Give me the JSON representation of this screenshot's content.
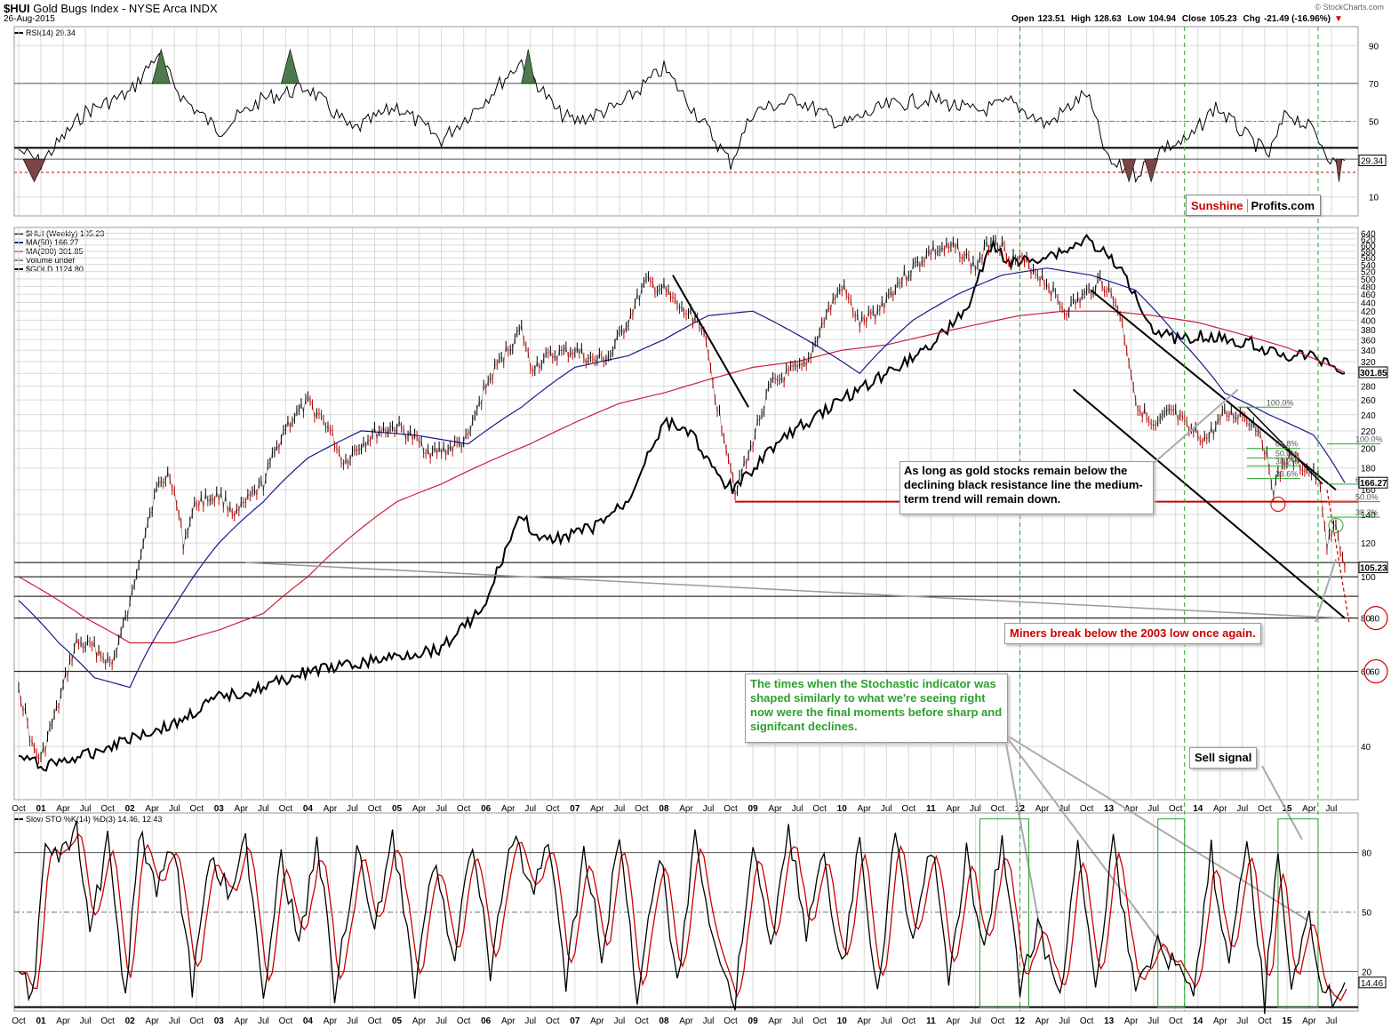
{
  "header": {
    "symbol": "$HUI",
    "title": "Gold Bugs Index - NYSE Arca INDX",
    "date": "26-Aug-2015",
    "credit": "© StockCharts.com",
    "open_label": "Open",
    "open": "123.51",
    "high_label": "High",
    "high": "128.63",
    "low_label": "Low",
    "low": "104.94",
    "close_label": "Close",
    "close": "105.23",
    "chg_label": "Chg",
    "chg": "-21.49 (-16.96%)",
    "chg_arrow": "▼"
  },
  "legends": {
    "rsi": "RSI(14) 29.34",
    "hui": "$HUI (Weekly) 105.23",
    "ma50": "MA(50) 166.27",
    "ma200": "MA(200) 301.85",
    "volume": "Volume undef",
    "gold": "$GOLD 1124.80",
    "sto": "Slow STO %K(14) %D(3) 14.46, 12.43"
  },
  "brand": {
    "part1": "Sunshine",
    "part2": "Profits.com"
  },
  "annotations": {
    "resistance": "As long as gold stocks remain below the declining black resistance line the medium-term trend will remain down.",
    "breakdown": "Miners break below the 2003 low once again.",
    "stochastic": "The times when the Stochastic indicator was shaped similarly to what we're seeing right now were the final moments before sharp and signifcant declines.",
    "sell": "Sell signal"
  },
  "colors": {
    "price": "#000000",
    "down_bar": "#cc0000",
    "ma50": "#1a1a8c",
    "ma200": "#cc1f3a",
    "gold": "#000000",
    "green": "#2ea02e",
    "grid": "#d9d9d9",
    "rsi_fill_hi": "#4d7a4d",
    "rsi_fill_lo": "#7a4545"
  },
  "chart_data": [
    {
      "name": "rsi",
      "type": "line",
      "title": "RSI(14) 29.34",
      "ylim": [
        0,
        100
      ],
      "yticks": [
        10,
        30,
        50,
        70,
        90
      ],
      "levels": [
        70,
        50,
        30
      ],
      "last_value": 29.34,
      "last_label": "29.34",
      "x": [
        2000.75,
        2001.0,
        2001.5,
        2002.0,
        2002.3,
        2002.6,
        2003.0,
        2003.5,
        2004.0,
        2004.5,
        2005.0,
        2005.5,
        2006.0,
        2006.4,
        2006.8,
        2007.0,
        2007.5,
        2008.0,
        2008.4,
        2008.75,
        2009.0,
        2009.5,
        2010.0,
        2010.5,
        2011.0,
        2011.5,
        2011.9,
        2012.3,
        2012.75,
        2013.0,
        2013.3,
        2013.6,
        2013.9,
        2014.2,
        2014.5,
        2014.8,
        2015.0,
        2015.3,
        2015.55,
        2015.65
      ],
      "values": [
        35,
        28,
        55,
        65,
        85,
        62,
        45,
        62,
        68,
        45,
        58,
        40,
        62,
        82,
        55,
        50,
        58,
        78,
        52,
        28,
        55,
        62,
        48,
        58,
        62,
        55,
        60,
        48,
        65,
        28,
        22,
        36,
        40,
        58,
        44,
        32,
        55,
        45,
        26,
        29.34
      ]
    },
    {
      "name": "price",
      "type": "line",
      "title": "$HUI (Weekly) 105.23",
      "scale": "log",
      "ylim": [
        30,
        660
      ],
      "yticks": [
        40,
        60,
        80,
        100,
        120,
        140,
        160,
        180,
        200,
        220,
        240,
        260,
        280,
        300,
        320,
        340,
        360,
        380,
        400,
        420,
        440,
        460,
        480,
        500,
        520,
        540,
        560,
        580,
        600,
        620,
        640
      ],
      "ytick_labels": [
        "40",
        "60",
        "80",
        "100",
        "120",
        "140",
        "160",
        "180",
        "200",
        "220",
        "240",
        "260",
        "280",
        "300",
        "320",
        "340",
        "360",
        "380",
        "400",
        "420",
        "440",
        "460",
        "480",
        "500",
        "520",
        "540",
        "560",
        "580",
        "600",
        "620",
        "640"
      ],
      "xlim": [
        2000.7,
        2015.8
      ],
      "x_ticks": [
        {
          "x": 2000.75,
          "label": "Oct"
        },
        {
          "x": 2001.0,
          "label": "01"
        },
        {
          "x": 2001.25,
          "label": "Apr"
        },
        {
          "x": 2001.5,
          "label": "Jul"
        },
        {
          "x": 2001.75,
          "label": "Oct"
        },
        {
          "x": 2002.0,
          "label": "02"
        },
        {
          "x": 2002.25,
          "label": "Apr"
        },
        {
          "x": 2002.5,
          "label": "Jul"
        },
        {
          "x": 2002.75,
          "label": "Oct"
        },
        {
          "x": 2003.0,
          "label": "03"
        },
        {
          "x": 2003.25,
          "label": "Apr"
        },
        {
          "x": 2003.5,
          "label": "Jul"
        },
        {
          "x": 2003.75,
          "label": "Oct"
        },
        {
          "x": 2004.0,
          "label": "04"
        },
        {
          "x": 2004.25,
          "label": "Apr"
        },
        {
          "x": 2004.5,
          "label": "Jul"
        },
        {
          "x": 2004.75,
          "label": "Oct"
        },
        {
          "x": 2005.0,
          "label": "05"
        },
        {
          "x": 2005.25,
          "label": "Apr"
        },
        {
          "x": 2005.5,
          "label": "Jul"
        },
        {
          "x": 2005.75,
          "label": "Oct"
        },
        {
          "x": 2006.0,
          "label": "06"
        },
        {
          "x": 2006.25,
          "label": "Apr"
        },
        {
          "x": 2006.5,
          "label": "Jul"
        },
        {
          "x": 2006.75,
          "label": "Oct"
        },
        {
          "x": 2007.0,
          "label": "07"
        },
        {
          "x": 2007.25,
          "label": "Apr"
        },
        {
          "x": 2007.5,
          "label": "Jul"
        },
        {
          "x": 2007.75,
          "label": "Oct"
        },
        {
          "x": 2008.0,
          "label": "08"
        },
        {
          "x": 2008.25,
          "label": "Apr"
        },
        {
          "x": 2008.5,
          "label": "Jul"
        },
        {
          "x": 2008.75,
          "label": "Oct"
        },
        {
          "x": 2009.0,
          "label": "09"
        },
        {
          "x": 2009.25,
          "label": "Apr"
        },
        {
          "x": 2009.5,
          "label": "Jul"
        },
        {
          "x": 2009.75,
          "label": "Oct"
        },
        {
          "x": 2010.0,
          "label": "10"
        },
        {
          "x": 2010.25,
          "label": "Apr"
        },
        {
          "x": 2010.5,
          "label": "Jul"
        },
        {
          "x": 2010.75,
          "label": "Oct"
        },
        {
          "x": 2011.0,
          "label": "11"
        },
        {
          "x": 2011.25,
          "label": "Apr"
        },
        {
          "x": 2011.5,
          "label": "Jul"
        },
        {
          "x": 2011.75,
          "label": "Oct"
        },
        {
          "x": 2012.0,
          "label": "12"
        },
        {
          "x": 2012.25,
          "label": "Apr"
        },
        {
          "x": 2012.5,
          "label": "Jul"
        },
        {
          "x": 2012.75,
          "label": "Oct"
        },
        {
          "x": 2013.0,
          "label": "13"
        },
        {
          "x": 2013.25,
          "label": "Apr"
        },
        {
          "x": 2013.5,
          "label": "Jul"
        },
        {
          "x": 2013.75,
          "label": "Oct"
        },
        {
          "x": 2014.0,
          "label": "14"
        },
        {
          "x": 2014.25,
          "label": "Apr"
        },
        {
          "x": 2014.5,
          "label": "Jul"
        },
        {
          "x": 2014.75,
          "label": "Oct"
        },
        {
          "x": 2015.0,
          "label": "15"
        },
        {
          "x": 2015.25,
          "label": "Apr"
        },
        {
          "x": 2015.5,
          "label": "Jul"
        }
      ],
      "series": [
        {
          "name": "$HUI (Weekly)",
          "last": 105.23,
          "last_label": "105.23",
          "x": [
            2000.75,
            2000.9,
            2001.0,
            2001.2,
            2001.4,
            2001.6,
            2001.8,
            2002.0,
            2002.3,
            2002.45,
            2002.6,
            2002.75,
            2003.0,
            2003.2,
            2003.5,
            2003.75,
            2004.0,
            2004.2,
            2004.4,
            2004.6,
            2004.8,
            2005.0,
            2005.2,
            2005.4,
            2005.6,
            2005.8,
            2006.0,
            2006.2,
            2006.4,
            2006.5,
            2006.75,
            2007.0,
            2007.2,
            2007.4,
            2007.6,
            2007.8,
            2008.0,
            2008.2,
            2008.4,
            2008.6,
            2008.8,
            2008.95,
            2009.2,
            2009.4,
            2009.6,
            2009.8,
            2010.0,
            2010.2,
            2010.4,
            2010.6,
            2010.8,
            2011.0,
            2011.3,
            2011.5,
            2011.7,
            2011.9,
            2012.1,
            2012.3,
            2012.5,
            2012.75,
            2012.9,
            2013.1,
            2013.3,
            2013.5,
            2013.7,
            2013.9,
            2014.1,
            2014.3,
            2014.5,
            2014.7,
            2014.85,
            2015.0,
            2015.2,
            2015.35,
            2015.45,
            2015.55,
            2015.65
          ],
          "y": [
            55,
            40,
            37,
            50,
            70,
            68,
            62,
            85,
            160,
            175,
            120,
            150,
            155,
            140,
            165,
            225,
            255,
            230,
            185,
            205,
            220,
            225,
            210,
            195,
            200,
            210,
            280,
            330,
            380,
            310,
            330,
            340,
            320,
            330,
            400,
            490,
            470,
            420,
            400,
            250,
            160,
            190,
            280,
            300,
            310,
            400,
            480,
            390,
            420,
            480,
            530,
            580,
            590,
            530,
            630,
            560,
            540,
            490,
            420,
            460,
            500,
            430,
            260,
            220,
            245,
            220,
            210,
            240,
            240,
            220,
            160,
            190,
            180,
            170,
            120,
            130,
            105.23
          ]
        },
        {
          "name": "MA(50)",
          "last": 166.27,
          "last_label": "166.27",
          "x": [
            2000.75,
            2001.2,
            2001.6,
            2002.0,
            2002.5,
            2003.0,
            2003.5,
            2004.0,
            2004.6,
            2005.2,
            2005.8,
            2006.4,
            2007.0,
            2007.6,
            2008.0,
            2008.5,
            2009.0,
            2009.6,
            2010.2,
            2010.8,
            2011.3,
            2011.8,
            2012.3,
            2012.8,
            2013.3,
            2013.8,
            2014.3,
            2014.8,
            2015.3,
            2015.65
          ],
          "y": [
            88,
            70,
            58,
            55,
            85,
            120,
            150,
            190,
            220,
            215,
            205,
            250,
            310,
            330,
            360,
            410,
            420,
            360,
            300,
            400,
            460,
            510,
            530,
            510,
            470,
            360,
            270,
            240,
            215,
            166.27
          ]
        },
        {
          "name": "MA(200)",
          "last": 301.85,
          "last_label": "301.85",
          "x": [
            2000.75,
            2001.5,
            2002.0,
            2002.5,
            2003.0,
            2003.5,
            2004.0,
            2004.5,
            2005.0,
            2005.5,
            2006.0,
            2006.5,
            2007.0,
            2007.5,
            2008.0,
            2008.5,
            2009.0,
            2009.5,
            2010.0,
            2010.5,
            2011.0,
            2011.5,
            2012.0,
            2012.5,
            2013.0,
            2013.5,
            2014.0,
            2014.5,
            2015.0,
            2015.65
          ],
          "y": [
            100,
            80,
            70,
            70,
            75,
            82,
            100,
            125,
            150,
            165,
            185,
            205,
            230,
            255,
            270,
            290,
            310,
            320,
            340,
            350,
            370,
            390,
            410,
            420,
            420,
            410,
            395,
            370,
            345,
            301.85
          ]
        },
        {
          "name": "$GOLD",
          "last": 1124.8,
          "last_label": "1124.80",
          "x": [
            2000.75,
            2001.0,
            2001.5,
            2002.0,
            2002.5,
            2003.0,
            2003.5,
            2004.0,
            2004.5,
            2005.0,
            2005.5,
            2006.0,
            2006.4,
            2006.6,
            2006.9,
            2007.2,
            2007.6,
            2008.0,
            2008.3,
            2008.6,
            2008.8,
            2009.2,
            2009.6,
            2010.0,
            2010.5,
            2011.0,
            2011.4,
            2011.7,
            2011.9,
            2012.2,
            2012.5,
            2012.75,
            2013.0,
            2013.2,
            2013.5,
            2013.8,
            2014.0,
            2014.3,
            2014.6,
            2014.9,
            2015.2,
            2015.45,
            2015.65
          ],
          "y": [
            38,
            36,
            38,
            42,
            45,
            52,
            55,
            60,
            62,
            65,
            68,
            85,
            140,
            120,
            125,
            130,
            150,
            230,
            220,
            170,
            160,
            200,
            230,
            260,
            300,
            350,
            420,
            600,
            540,
            560,
            580,
            620,
            560,
            500,
            380,
            360,
            370,
            360,
            355,
            330,
            330,
            320,
            300
          ]
        }
      ],
      "horizontal_levels": [
        100,
        90,
        80,
        60,
        108
      ],
      "support_level": 150,
      "fib_labels": [
        "100.0%",
        "61.8%",
        "50.0%",
        "38.2%",
        "23.6%",
        "100.0%",
        "61.8%",
        "50.0%",
        "38.2%"
      ],
      "target_levels": [
        80,
        60
      ],
      "target_labels": [
        "80",
        "60"
      ]
    },
    {
      "name": "stochastic",
      "type": "line",
      "title": "Slow STO %K(14) %D(3) 14.46, 12.43",
      "ylim": [
        0,
        100
      ],
      "yticks": [
        20,
        50,
        80
      ],
      "levels": [
        80,
        50,
        20,
        0
      ],
      "k_last": 14.46,
      "d_last": 12.43,
      "last_label": "14.46",
      "highlight_boxes": [
        [
          2011.55,
          2012.1
        ],
        [
          2013.55,
          2013.85
        ],
        [
          2014.9,
          2015.35
        ]
      ],
      "cycle_x": [
        2000.75,
        2000.9,
        2001.05,
        2001.2,
        2001.4,
        2001.55,
        2001.75,
        2001.95,
        2002.1,
        2002.3,
        2002.5,
        2002.7,
        2002.9,
        2003.1,
        2003.3,
        2003.5,
        2003.7,
        2003.9,
        2004.1,
        2004.3,
        2004.55,
        2004.75,
        2004.95,
        2005.2,
        2005.4,
        2005.65,
        2005.85,
        2006.05,
        2006.3,
        2006.5,
        2006.7,
        2006.9,
        2007.1,
        2007.3,
        2007.5,
        2007.7,
        2007.95,
        2008.15,
        2008.35,
        2008.55,
        2008.8,
        2009.0,
        2009.2,
        2009.4,
        2009.6,
        2009.8,
        2010.0,
        2010.2,
        2010.4,
        2010.6,
        2010.8,
        2011.0,
        2011.2,
        2011.4,
        2011.6,
        2011.8,
        2012.0,
        2012.2,
        2012.45,
        2012.65,
        2012.85,
        2013.05,
        2013.3,
        2013.55,
        2013.75,
        2013.95,
        2014.15,
        2014.35,
        2014.55,
        2014.75,
        2014.9,
        2015.05,
        2015.25,
        2015.4,
        2015.55,
        2015.65
      ],
      "k_values": [
        20,
        5,
        85,
        75,
        90,
        40,
        85,
        10,
        90,
        60,
        85,
        10,
        80,
        60,
        85,
        10,
        80,
        30,
        90,
        10,
        80,
        40,
        90,
        10,
        75,
        30,
        85,
        20,
        90,
        60,
        85,
        15,
        80,
        30,
        85,
        10,
        80,
        15,
        90,
        35,
        5,
        85,
        30,
        90,
        40,
        80,
        20,
        85,
        10,
        90,
        30,
        85,
        15,
        80,
        30,
        90,
        10,
        45,
        5,
        90,
        10,
        85,
        5,
        40,
        20,
        5,
        80,
        20,
        90,
        5,
        85,
        10,
        50,
        5,
        10,
        14.46
      ]
    }
  ]
}
